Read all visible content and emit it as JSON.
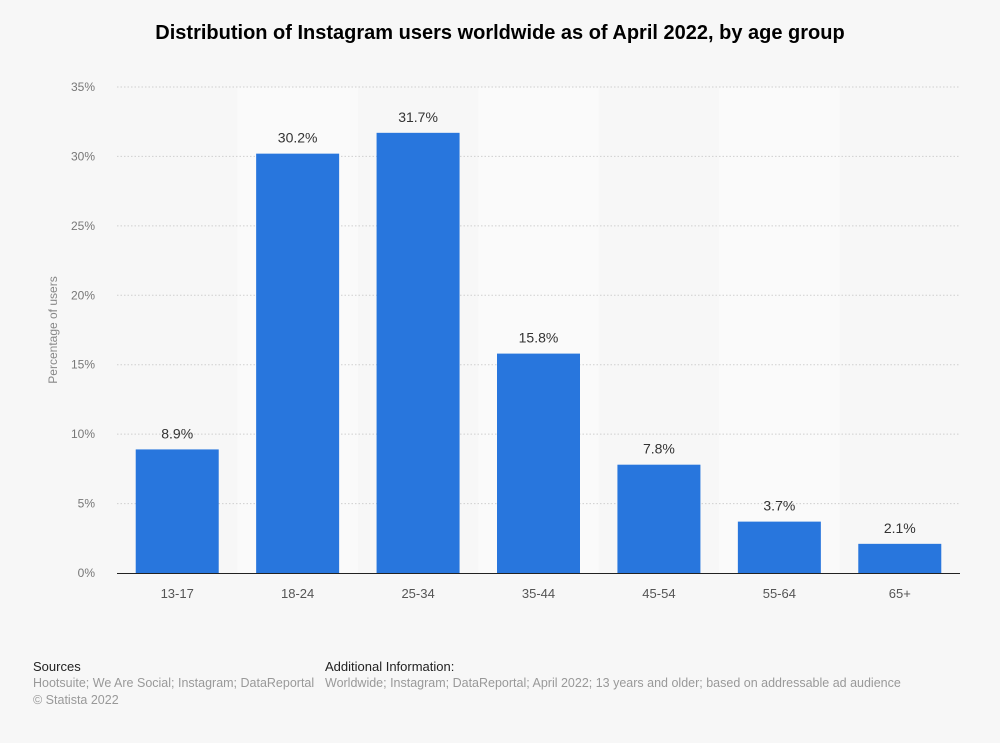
{
  "chart_data": {
    "type": "bar",
    "title": "Distribution of Instagram users worldwide as of April 2022, by age group",
    "xlabel": "",
    "ylabel": "Percentage of users",
    "categories": [
      "13-17",
      "18-24",
      "25-34",
      "35-44",
      "45-54",
      "55-64",
      "65+"
    ],
    "values": [
      8.9,
      30.2,
      31.7,
      15.8,
      7.8,
      3.7,
      2.1
    ],
    "data_labels": [
      "8.9%",
      "30.2%",
      "31.7%",
      "15.8%",
      "7.8%",
      "3.7%",
      "2.1%"
    ],
    "ylim": [
      0,
      35
    ],
    "yticks": [
      0,
      5,
      10,
      15,
      20,
      25,
      30,
      35
    ],
    "ytick_labels": [
      "0%",
      "5%",
      "10%",
      "15%",
      "20%",
      "25%",
      "30%",
      "35%"
    ],
    "grid": true,
    "legend": "none",
    "bar_color": "#2876dd"
  },
  "footer": {
    "sources_heading": "Sources",
    "sources": "Hootsuite; We Are Social; Instagram; DataReportal",
    "copyright": "© Statista 2022",
    "additional_heading": "Additional Information:",
    "additional": "Worldwide; Instagram; DataReportal; April 2022; 13 years and older; based on addressable ad audience"
  }
}
